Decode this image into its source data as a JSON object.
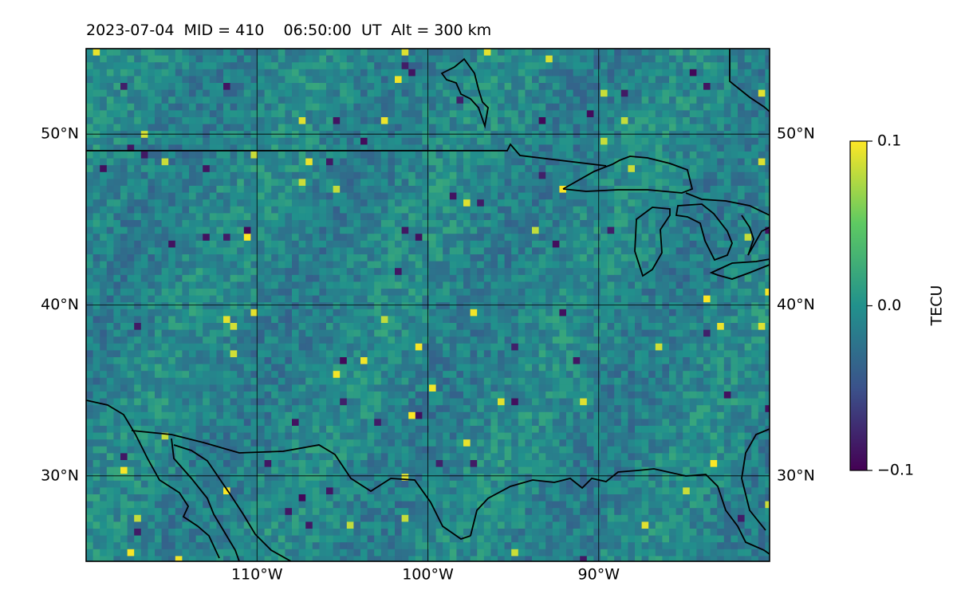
{
  "title": "2023-07-04  MID = 410    06:50:00  UT  Alt = 300 km",
  "map": {
    "lon_range": [
      -120,
      -80
    ],
    "lat_range": [
      25,
      55
    ],
    "lat_ticks": [
      {
        "value": 30,
        "label": "30°N"
      },
      {
        "value": 40,
        "label": "40°N"
      },
      {
        "value": 50,
        "label": "50°N"
      }
    ],
    "lon_ticks": [
      {
        "value": -110,
        "label": "110°W"
      },
      {
        "value": -100,
        "label": "100°W"
      },
      {
        "value": -90,
        "label": "90°W"
      }
    ],
    "colormap": "viridis",
    "colors": {
      "low": "#440154",
      "mid": "#21918c",
      "high": "#fde725"
    },
    "grid": true
  },
  "colorbar": {
    "label": "TECU",
    "min": -0.1,
    "max": 0.1,
    "ticks": [
      {
        "value": 0.1,
        "label": "0.1"
      },
      {
        "value": 0.0,
        "label": "0.0"
      },
      {
        "value": -0.1,
        "label": "−0.1"
      }
    ]
  }
}
